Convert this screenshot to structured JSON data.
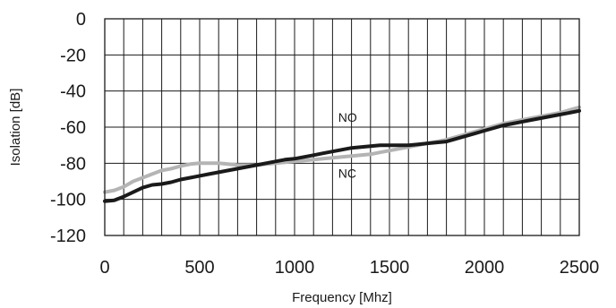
{
  "chart_data": {
    "type": "line",
    "title": "",
    "xlabel": "Frequency [Mhz]",
    "ylabel": "Isolation [dB]",
    "xlim": [
      0,
      2500
    ],
    "ylim": [
      -120,
      0
    ],
    "x_ticks": [
      0,
      500,
      1000,
      1500,
      2000,
      2500
    ],
    "y_ticks": [
      0,
      -20,
      -40,
      -60,
      -80,
      -100,
      -120
    ],
    "x_grid_step": 100,
    "y_grid_step": 20,
    "grid": true,
    "legend": "inline labels",
    "series": [
      {
        "name": "NO",
        "color": "#b4b4b4",
        "x": [
          0,
          50,
          100,
          150,
          200,
          250,
          300,
          350,
          400,
          450,
          500,
          550,
          600,
          650,
          700,
          750,
          800,
          850,
          900,
          950,
          1000,
          1050,
          1100,
          1150,
          1200,
          1250,
          1300,
          1350,
          1400,
          1450,
          1500,
          1550,
          1600,
          1650,
          1700,
          1750,
          1800,
          1850,
          1900,
          1950,
          2000,
          2050,
          2100,
          2150,
          2200,
          2250,
          2300,
          2350,
          2400,
          2450,
          2500
        ],
        "y": [
          -96,
          -95,
          -93,
          -90,
          -88,
          -86,
          -84,
          -83,
          -81.5,
          -80.5,
          -80,
          -80,
          -80,
          -80.5,
          -81,
          -81,
          -81,
          -80.5,
          -80,
          -79.5,
          -79,
          -78.5,
          -78,
          -77.5,
          -77,
          -76.5,
          -76,
          -75.5,
          -75,
          -74,
          -73,
          -72,
          -71,
          -70,
          -69,
          -68,
          -67,
          -65.5,
          -64,
          -62.5,
          -61,
          -59.5,
          -58,
          -57,
          -56,
          -55,
          -54,
          -53,
          -52,
          -50.5,
          -49
        ]
      },
      {
        "name": "NC",
        "color": "#1a1a1a",
        "x": [
          0,
          50,
          100,
          150,
          200,
          250,
          300,
          350,
          400,
          450,
          500,
          550,
          600,
          650,
          700,
          750,
          800,
          850,
          900,
          950,
          1000,
          1050,
          1100,
          1150,
          1200,
          1250,
          1300,
          1350,
          1400,
          1450,
          1500,
          1550,
          1600,
          1650,
          1700,
          1750,
          1800,
          1850,
          1900,
          1950,
          2000,
          2050,
          2100,
          2150,
          2200,
          2250,
          2300,
          2350,
          2400,
          2450,
          2500
        ],
        "y": [
          -101,
          -100.5,
          -98.5,
          -96,
          -93.5,
          -92,
          -91.5,
          -90.5,
          -89,
          -88,
          -87,
          -86,
          -85,
          -84,
          -83,
          -82,
          -81,
          -80,
          -79,
          -78,
          -77.5,
          -76.5,
          -75.5,
          -74.5,
          -73.5,
          -72.5,
          -71.5,
          -71,
          -70.5,
          -70,
          -70,
          -70,
          -70,
          -69.5,
          -69,
          -68.5,
          -68,
          -66.5,
          -65,
          -63.5,
          -62,
          -60.5,
          -59,
          -58,
          -57,
          -56,
          -55,
          -54,
          -53,
          -52,
          -51
        ]
      }
    ]
  }
}
